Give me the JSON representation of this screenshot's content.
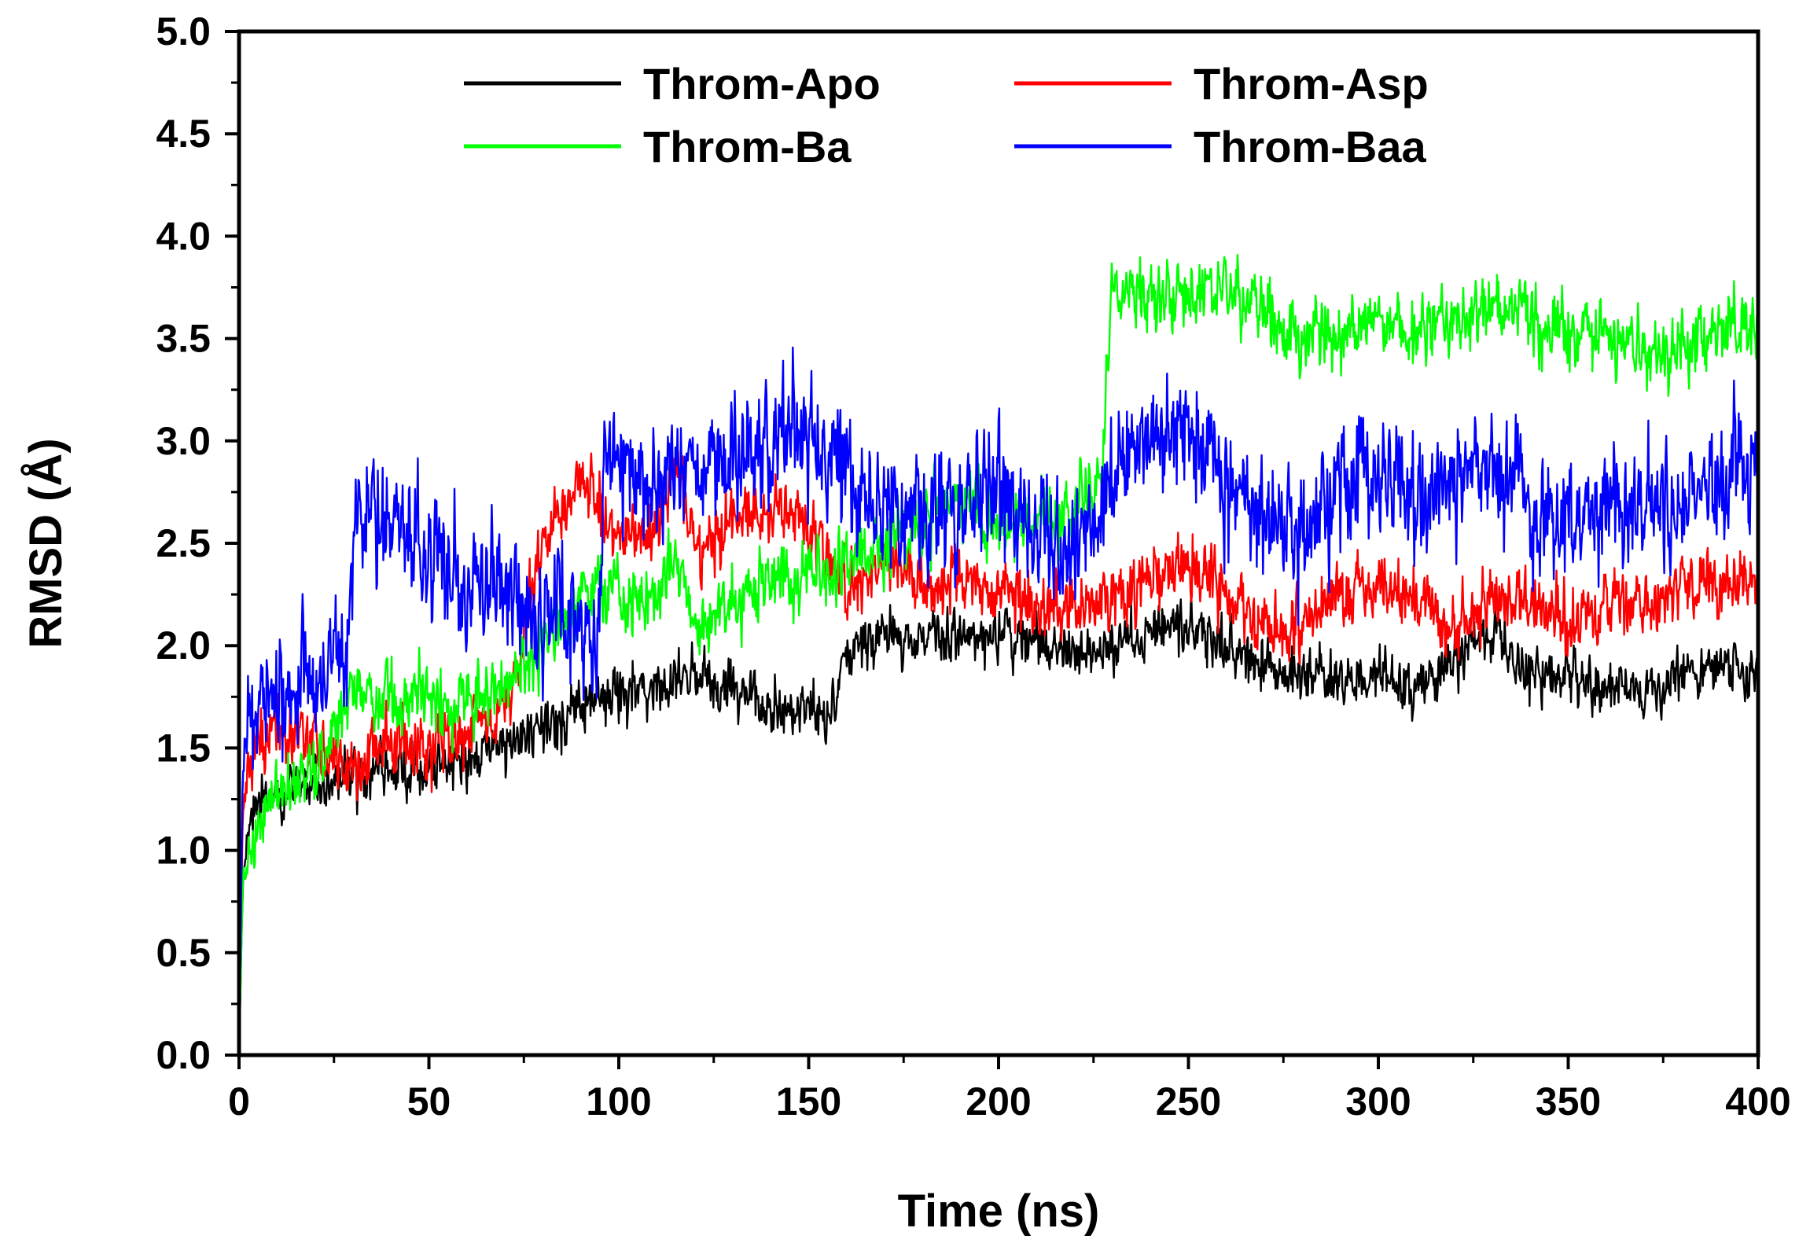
{
  "chart_data": {
    "type": "line",
    "title": "",
    "xlabel": "Time (ns)",
    "ylabel": "RMSD (Å)",
    "xlim": [
      0,
      400
    ],
    "ylim": [
      0,
      5.0
    ],
    "x_ticks": [
      0,
      50,
      100,
      150,
      200,
      250,
      300,
      350,
      400
    ],
    "x_tick_labels": [
      "0",
      "50",
      "100",
      "150",
      "200",
      "250",
      "300",
      "350",
      "400"
    ],
    "y_ticks": [
      0,
      0.5,
      1.0,
      1.5,
      2.0,
      2.5,
      3.0,
      3.5,
      4.0,
      4.5,
      5.0
    ],
    "y_tick_labels": [
      "0.0",
      "0.5",
      "1.0",
      "1.5",
      "2.0",
      "2.5",
      "3.0",
      "3.5",
      "4.0",
      "4.5",
      "5.0"
    ],
    "grid": false,
    "legend_position": "top",
    "series": [
      {
        "name": "Throm-Apo",
        "color": "#000000",
        "noise": 0.13,
        "x": [
          0,
          1,
          3,
          10,
          20,
          30,
          40,
          50,
          60,
          70,
          80,
          90,
          95,
          100,
          110,
          120,
          130,
          140,
          150,
          155,
          160,
          170,
          180,
          190,
          200,
          210,
          220,
          230,
          240,
          250,
          260,
          270,
          280,
          290,
          300,
          310,
          320,
          330,
          340,
          350,
          360,
          370,
          380,
          390,
          400
        ],
        "y": [
          0.0,
          0.85,
          1.2,
          1.3,
          1.3,
          1.35,
          1.4,
          1.4,
          1.45,
          1.5,
          1.6,
          1.7,
          1.8,
          1.75,
          1.8,
          1.85,
          1.75,
          1.7,
          1.7,
          1.65,
          2.0,
          2.05,
          2.05,
          2.05,
          2.05,
          2.0,
          1.95,
          2.0,
          2.05,
          2.1,
          2.0,
          1.9,
          1.85,
          1.85,
          1.85,
          1.8,
          1.95,
          2.05,
          1.85,
          1.8,
          1.8,
          1.75,
          1.85,
          1.9,
          1.85
        ]
      },
      {
        "name": "Throm-Asp",
        "color": "#ff0000",
        "noise": 0.16,
        "x": [
          0,
          1,
          3,
          10,
          20,
          28,
          32,
          40,
          50,
          60,
          70,
          80,
          90,
          95,
          100,
          110,
          115,
          120,
          130,
          140,
          150,
          160,
          170,
          180,
          190,
          200,
          210,
          220,
          230,
          240,
          250,
          260,
          270,
          280,
          290,
          300,
          310,
          320,
          330,
          340,
          350,
          360,
          370,
          380,
          390,
          400
        ],
        "y": [
          0.0,
          1.2,
          1.5,
          1.6,
          1.5,
          1.4,
          1.4,
          1.5,
          1.5,
          1.6,
          1.7,
          2.5,
          2.8,
          2.7,
          2.5,
          2.6,
          2.9,
          2.5,
          2.6,
          2.7,
          2.6,
          2.3,
          2.4,
          2.3,
          2.3,
          2.3,
          2.2,
          2.2,
          2.2,
          2.3,
          2.4,
          2.2,
          2.1,
          2.1,
          2.3,
          2.3,
          2.2,
          2.1,
          2.2,
          2.2,
          2.1,
          2.2,
          2.2,
          2.3,
          2.3,
          2.3
        ]
      },
      {
        "name": "Throm-Ba",
        "color": "#00ff00",
        "noise": 0.17,
        "x": [
          0,
          1,
          3,
          10,
          20,
          30,
          40,
          50,
          60,
          70,
          80,
          90,
          95,
          100,
          110,
          115,
          120,
          130,
          140,
          150,
          160,
          170,
          180,
          190,
          200,
          210,
          220,
          227,
          230,
          240,
          250,
          260,
          270,
          280,
          290,
          300,
          310,
          320,
          330,
          340,
          350,
          360,
          370,
          380,
          390,
          400
        ],
        "y": [
          0.0,
          0.9,
          1.0,
          1.3,
          1.4,
          1.8,
          1.7,
          1.7,
          1.7,
          1.8,
          2.0,
          2.2,
          2.3,
          2.2,
          2.25,
          2.4,
          2.1,
          2.2,
          2.3,
          2.35,
          2.4,
          2.5,
          2.6,
          2.7,
          2.6,
          2.6,
          2.7,
          2.8,
          3.75,
          3.7,
          3.7,
          3.75,
          3.6,
          3.5,
          3.55,
          3.6,
          3.55,
          3.6,
          3.65,
          3.6,
          3.5,
          3.5,
          3.4,
          3.45,
          3.55,
          3.55
        ]
      },
      {
        "name": "Throm-Baa",
        "color": "#0000ff",
        "noise": 0.3,
        "x": [
          0,
          1,
          3,
          10,
          20,
          28,
          30,
          40,
          50,
          60,
          70,
          80,
          90,
          95,
          96,
          100,
          110,
          120,
          130,
          140,
          150,
          160,
          170,
          180,
          190,
          200,
          210,
          220,
          230,
          240,
          250,
          260,
          270,
          280,
          290,
          300,
          310,
          320,
          330,
          340,
          350,
          360,
          370,
          380,
          390,
          400
        ],
        "y": [
          0.0,
          1.4,
          1.7,
          1.75,
          1.8,
          1.9,
          2.6,
          2.6,
          2.4,
          2.3,
          2.3,
          2.2,
          2.1,
          2.0,
          2.9,
          2.9,
          2.8,
          2.9,
          2.9,
          3.0,
          3.0,
          2.8,
          2.7,
          2.6,
          2.7,
          2.8,
          2.5,
          2.5,
          2.8,
          3.0,
          3.1,
          2.8,
          2.6,
          2.5,
          2.8,
          2.8,
          2.7,
          2.8,
          2.9,
          2.7,
          2.6,
          2.7,
          2.6,
          2.7,
          2.8,
          2.9
        ]
      }
    ]
  }
}
